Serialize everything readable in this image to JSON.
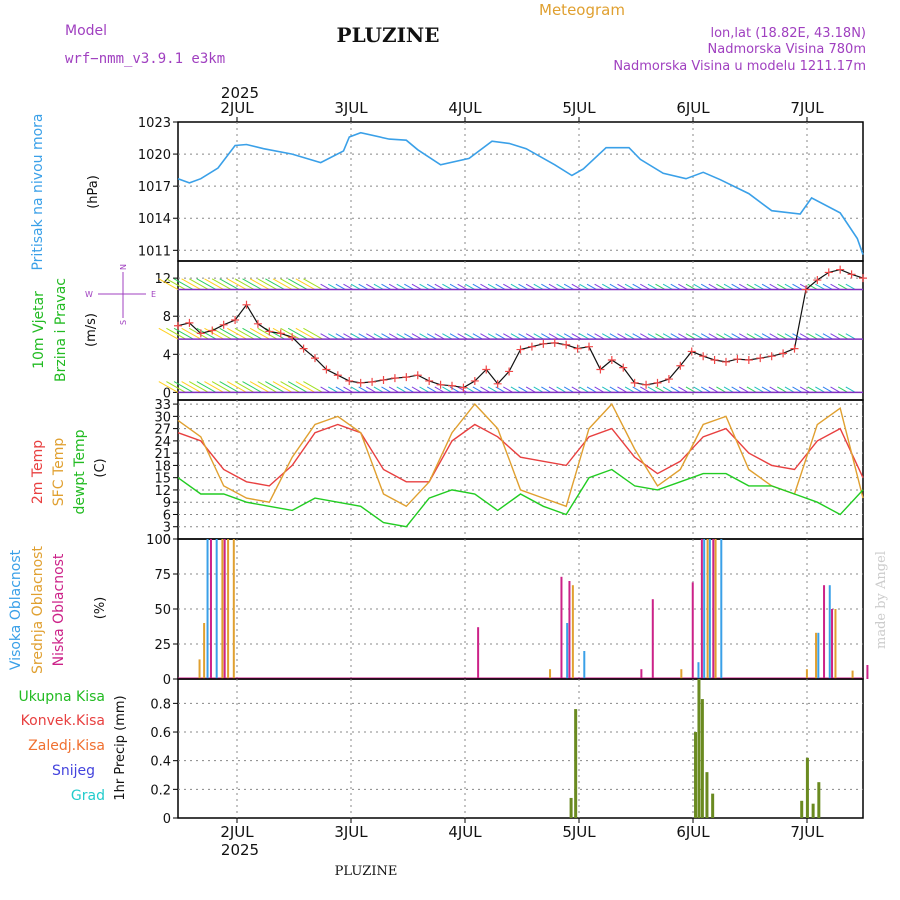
{
  "header": {
    "model_label": "Model",
    "model_name": "wrf−nmm_v3.9.1  e3km",
    "title": "PLUZINE",
    "meteogram_label": "Meteogram",
    "coords": "lon,lat (18.82E, 43.18N)",
    "elevation": "Nadmorska Visina 780m",
    "model_elevation": "Nadmorska Visina u modelu 1211.17m",
    "watermark": "made by Angel",
    "footer_title": "PLUZINE"
  },
  "colors": {
    "pressure": "#3aa0e8",
    "wind_label": "#22bb22",
    "temp2m": "#e84040",
    "sfc": "#e0a030",
    "dewpt": "#22cc22",
    "high_cloud": "#3aa0e8",
    "mid_cloud": "#e0a030",
    "low_cloud": "#cc2288",
    "purple": "#a040c0",
    "grid": "#888888"
  },
  "chart_data": [
    {
      "type": "line",
      "panel": "pressure",
      "title": "Pritisak na nivou mora",
      "ylabel": "(hPa)",
      "yticks": [
        1011,
        1014,
        1017,
        1020,
        1023
      ],
      "ylim": [
        1010,
        1023
      ],
      "x_days": [
        "2JUL",
        "3JUL",
        "4JUL",
        "5JUL",
        "6JUL",
        "7JUL"
      ],
      "year": "2025",
      "xlim": [
        0,
        6
      ],
      "x": [
        0,
        0.1,
        0.2,
        0.35,
        0.5,
        0.6,
        0.75,
        1.0,
        1.25,
        1.45,
        1.5,
        1.6,
        1.85,
        2.0,
        2.1,
        2.3,
        2.55,
        2.75,
        2.9,
        3.05,
        3.3,
        3.45,
        3.55,
        3.75,
        3.95,
        4.05,
        4.25,
        4.45,
        4.6,
        4.75,
        5.0,
        5.2,
        5.45,
        5.55,
        5.8,
        5.95,
        6.0
      ],
      "values": [
        1017.7,
        1017.3,
        1017.7,
        1018.7,
        1020.8,
        1020.9,
        1020.5,
        1020.0,
        1019.2,
        1020.3,
        1021.6,
        1022.0,
        1021.4,
        1021.3,
        1020.4,
        1019.0,
        1019.6,
        1021.2,
        1021.0,
        1020.5,
        1019.0,
        1018.0,
        1018.6,
        1020.6,
        1020.6,
        1019.5,
        1018.2,
        1017.7,
        1018.3,
        1017.6,
        1016.3,
        1014.7,
        1014.4,
        1015.9,
        1014.5,
        1012.1,
        1010.6
      ]
    },
    {
      "type": "line",
      "panel": "wind",
      "title": "10m Vjetar",
      "subtitle": "Brzina i Pravac",
      "ylabel": "(m/s)",
      "compass": {
        "north": "N",
        "west": "W",
        "east": "E",
        "south": "S"
      },
      "yticks": [
        0,
        4,
        8,
        12
      ],
      "ylim": [
        -0.8,
        13.8
      ],
      "x": [
        0,
        0.1,
        0.2,
        0.3,
        0.4,
        0.5,
        0.6,
        0.7,
        0.8,
        0.9,
        1.0,
        1.1,
        1.2,
        1.3,
        1.4,
        1.5,
        1.6,
        1.7,
        1.8,
        1.9,
        2.0,
        2.1,
        2.2,
        2.3,
        2.4,
        2.5,
        2.6,
        2.7,
        2.8,
        2.9,
        3.0,
        3.1,
        3.2,
        3.3,
        3.4,
        3.5,
        3.6,
        3.7,
        3.8,
        3.9,
        4.0,
        4.1,
        4.2,
        4.3,
        4.4,
        4.5,
        4.6,
        4.7,
        4.8,
        4.9,
        5.0,
        5.1,
        5.2,
        5.3,
        5.4,
        5.5,
        5.6,
        5.7,
        5.8,
        5.9,
        6.0
      ],
      "values": [
        7.0,
        7.3,
        6.2,
        6.5,
        7.1,
        7.6,
        9.2,
        7.2,
        6.4,
        6.2,
        5.8,
        4.6,
        3.6,
        2.4,
        1.8,
        1.2,
        1.0,
        1.1,
        1.3,
        1.5,
        1.6,
        1.8,
        1.2,
        0.8,
        0.7,
        0.5,
        1.2,
        2.4,
        0.9,
        2.2,
        4.5,
        4.8,
        5.1,
        5.2,
        5.0,
        4.6,
        4.8,
        2.4,
        3.4,
        2.6,
        1.0,
        0.8,
        1.0,
        1.4,
        2.8,
        4.3,
        3.8,
        3.4,
        3.2,
        3.5,
        3.4,
        3.6,
        3.8,
        4.1,
        4.6,
        10.8,
        11.8,
        12.6,
        12.9,
        12.4,
        12.0
      ]
    },
    {
      "type": "line",
      "panel": "temperature",
      "labels": [
        "2m Temp",
        "SFC Temp",
        "dewpt Temp"
      ],
      "ylabel": "(C)",
      "yticks": [
        0,
        3,
        6,
        9,
        12,
        15,
        18,
        21,
        24,
        27,
        30,
        33
      ],
      "ylim": [
        0,
        34
      ],
      "x": [
        0,
        0.2,
        0.4,
        0.6,
        0.8,
        1.0,
        1.2,
        1.4,
        1.6,
        1.8,
        2.0,
        2.2,
        2.4,
        2.6,
        2.8,
        3.0,
        3.2,
        3.4,
        3.6,
        3.8,
        4.0,
        4.2,
        4.4,
        4.6,
        4.8,
        5.0,
        5.2,
        5.4,
        5.6,
        5.8,
        6.0
      ],
      "series": [
        {
          "name": "2m Temp",
          "values": [
            26,
            24,
            17,
            14,
            13,
            18,
            26,
            28,
            26,
            17,
            14,
            14,
            24,
            28,
            25,
            20,
            19,
            18,
            25,
            27,
            20,
            16,
            19,
            25,
            27,
            21,
            18,
            17,
            24,
            27,
            15
          ]
        },
        {
          "name": "SFC Temp",
          "values": [
            29,
            25,
            13,
            10,
            9,
            20,
            28,
            30,
            26,
            11,
            8,
            14,
            26,
            33,
            27,
            12,
            10,
            8,
            27,
            33,
            22,
            13,
            17,
            28,
            30,
            17,
            13,
            11,
            28,
            32,
            10
          ]
        },
        {
          "name": "dewpt Temp",
          "values": [
            15,
            11,
            11,
            9,
            8,
            7,
            10,
            9,
            8,
            4,
            3,
            10,
            12,
            11,
            7,
            11,
            8,
            6,
            15,
            17,
            13,
            12,
            14,
            16,
            16,
            13,
            13,
            11,
            9,
            6,
            12
          ]
        }
      ]
    },
    {
      "type": "bar",
      "panel": "cloud",
      "labels": [
        "Visoka Oblacnost",
        "Srednja Oblacnost",
        "Niska Oblacnost"
      ],
      "ylabel": "(%)",
      "yticks": [
        0,
        25,
        50,
        75,
        100
      ],
      "ylim": [
        0,
        100
      ],
      "series": [
        {
          "name": "Visoka Oblacnost",
          "bars": [
            [
              0.25,
              100
            ],
            [
              0.33,
              100
            ],
            [
              3.4,
              40
            ],
            [
              3.55,
              20
            ],
            [
              4.55,
              12
            ],
            [
              4.6,
              100
            ],
            [
              4.65,
              100
            ],
            [
              4.75,
              100
            ],
            [
              5.6,
              33
            ],
            [
              5.7,
              67
            ]
          ]
        },
        {
          "name": "Srednja Oblacnost",
          "bars": [
            [
              0.18,
              14
            ],
            [
              0.22,
              40
            ],
            [
              0.38,
              100
            ],
            [
              0.43,
              100
            ],
            [
              0.48,
              100
            ],
            [
              3.25,
              7
            ],
            [
              3.45,
              67
            ],
            [
              4.4,
              7
            ],
            [
              4.63,
              100
            ],
            [
              4.7,
              100
            ],
            [
              5.5,
              7
            ],
            [
              5.58,
              33
            ],
            [
              5.75,
              50
            ],
            [
              5.9,
              6
            ]
          ]
        },
        {
          "name": "Niska Oblacnost",
          "bars": [
            [
              0.28,
              100
            ],
            [
              0.4,
              100
            ],
            [
              2.62,
              37
            ],
            [
              3.35,
              73
            ],
            [
              3.42,
              70
            ],
            [
              4.05,
              7
            ],
            [
              4.15,
              57
            ],
            [
              4.5,
              69
            ],
            [
              4.58,
              100
            ],
            [
              4.68,
              100
            ],
            [
              5.65,
              67
            ],
            [
              5.72,
              50
            ],
            [
              6.03,
              10
            ]
          ]
        }
      ]
    },
    {
      "type": "bar",
      "panel": "precipitation",
      "labels": [
        "Ukupna Kisa",
        "Konvek.Kisa",
        "Zaledj.Kisa",
        "Snijeg",
        "Grad"
      ],
      "ylabel": "1hr Precip (mm)",
      "yticks": [
        0,
        0.2,
        0.4,
        0.6,
        0.8
      ],
      "ylim": [
        0,
        0.97
      ],
      "series": [
        {
          "name": "Ukupna Kisa",
          "bars": [
            [
              3.43,
              0.14
            ],
            [
              3.47,
              0.76
            ],
            [
              4.52,
              0.6
            ],
            [
              4.55,
              0.97
            ],
            [
              4.58,
              0.83
            ],
            [
              4.62,
              0.32
            ],
            [
              4.67,
              0.17
            ],
            [
              5.45,
              0.12
            ],
            [
              5.5,
              0.42
            ],
            [
              5.55,
              0.1
            ],
            [
              5.6,
              0.25
            ]
          ]
        }
      ]
    }
  ]
}
